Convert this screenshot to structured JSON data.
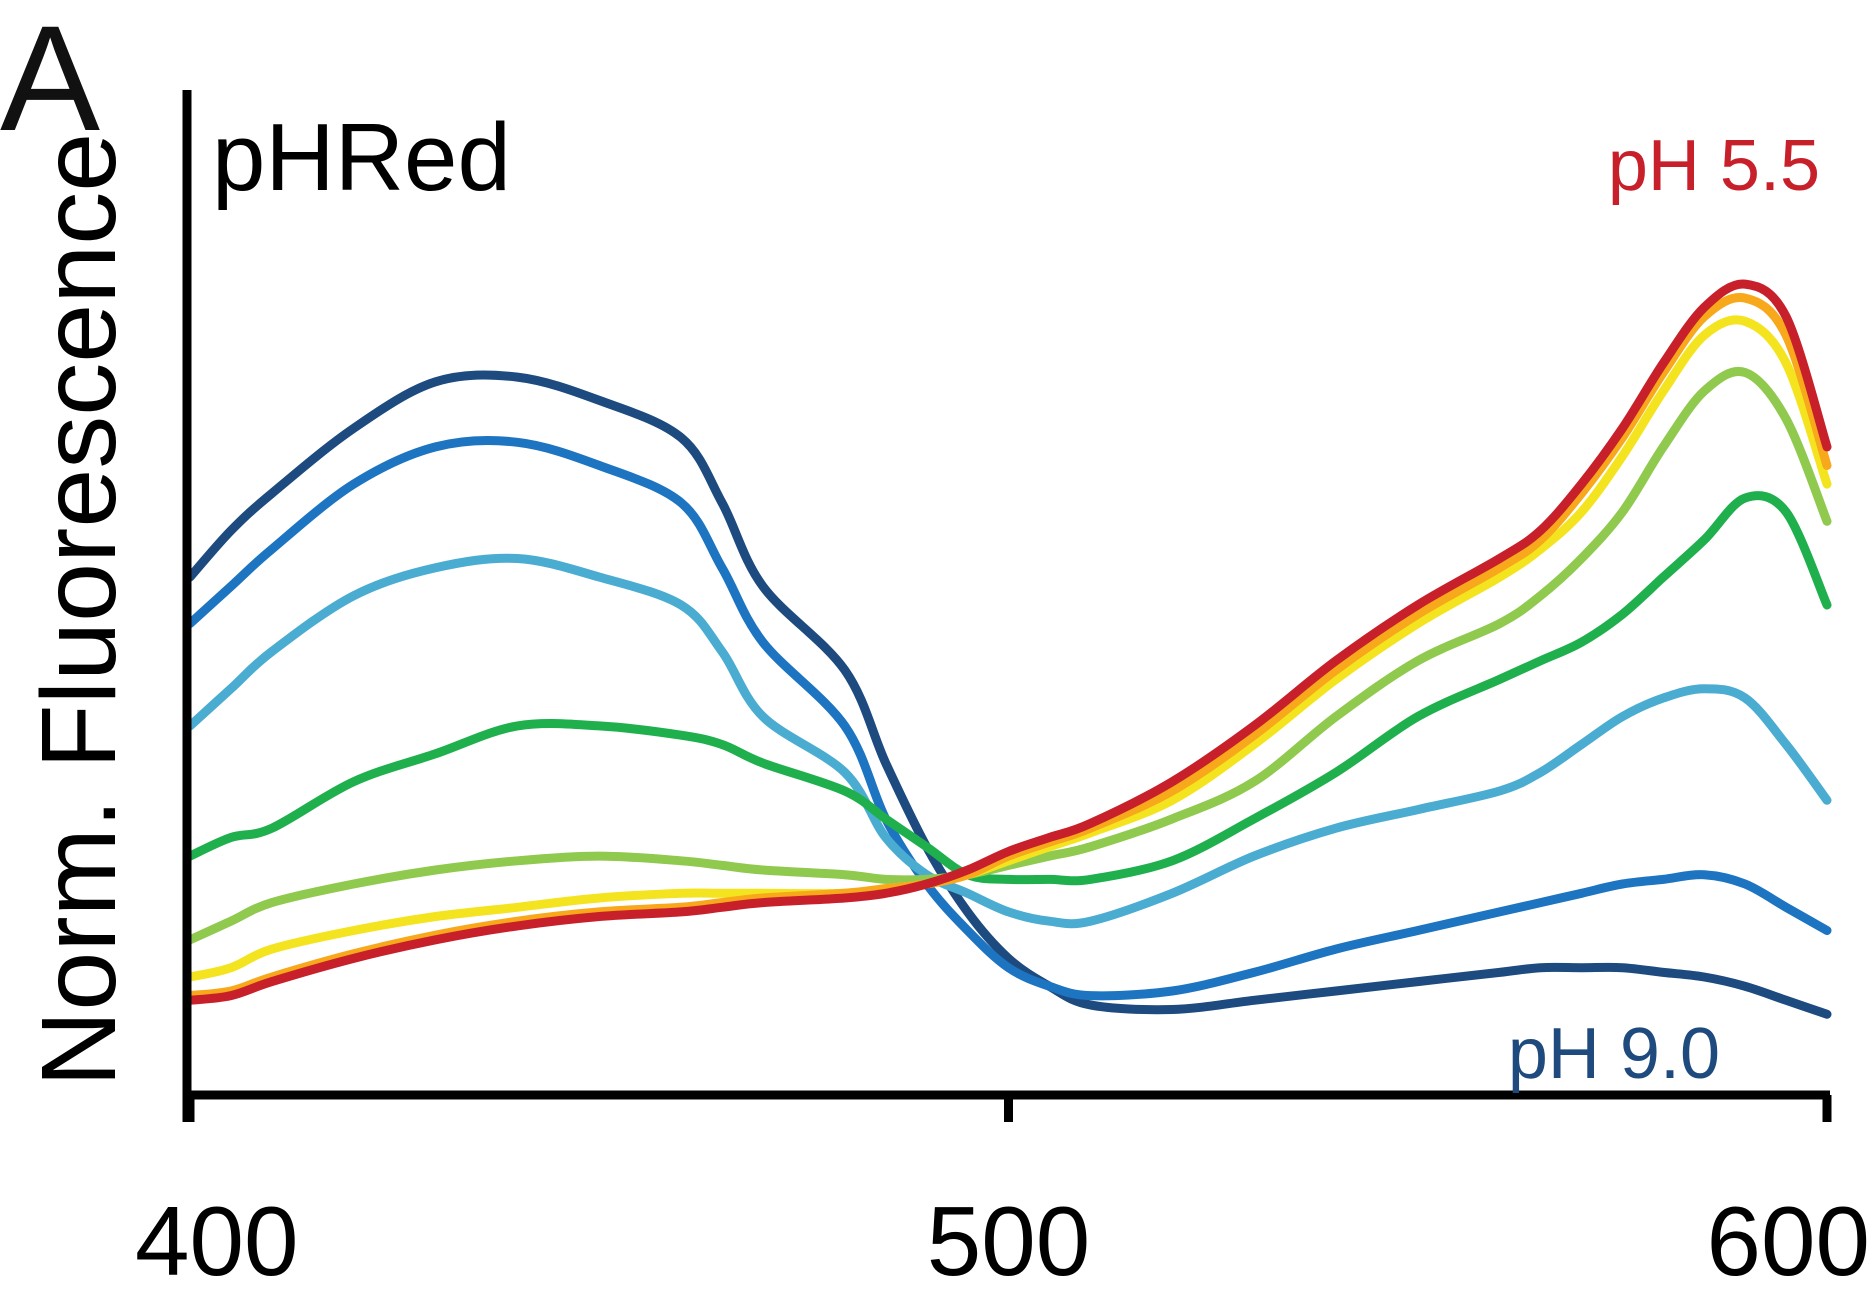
{
  "panel_label": "A",
  "chart_data": {
    "type": "line",
    "title": "pHRed",
    "xlabel": "",
    "ylabel": "Norm. Fluorescence",
    "xlim": [
      400,
      600
    ],
    "ylim": [
      0,
      1
    ],
    "x_ticks": [
      "400",
      "500",
      "600"
    ],
    "grid": false,
    "legend": "none",
    "annotations": [
      {
        "text": "pH 5.5",
        "color": "#c8202a"
      },
      {
        "text": "pH 9.0",
        "color": "#1e4a7e"
      }
    ],
    "x": [
      400,
      405,
      410,
      420,
      430,
      440,
      450,
      460,
      465,
      470,
      480,
      485,
      490,
      495,
      500,
      505,
      510,
      520,
      530,
      540,
      550,
      560,
      565,
      570,
      575,
      580,
      585,
      590,
      595,
      600
    ],
    "series": [
      {
        "color": "#1d4a7f",
        "values": [
          0.53,
          0.58,
          0.62,
          0.69,
          0.74,
          0.745,
          0.72,
          0.68,
          0.61,
          0.52,
          0.43,
          0.33,
          0.24,
          0.17,
          0.12,
          0.09,
          0.07,
          0.065,
          0.075,
          0.085,
          0.095,
          0.105,
          0.11,
          0.11,
          0.11,
          0.105,
          0.1,
          0.09,
          0.075,
          0.06
        ]
      },
      {
        "color": "#1d74c0",
        "values": [
          0.48,
          0.52,
          0.56,
          0.63,
          0.67,
          0.675,
          0.65,
          0.61,
          0.54,
          0.46,
          0.37,
          0.27,
          0.2,
          0.15,
          0.11,
          0.09,
          0.08,
          0.085,
          0.105,
          0.13,
          0.15,
          0.17,
          0.18,
          0.19,
          0.2,
          0.205,
          0.21,
          0.2,
          0.175,
          0.15
        ]
      },
      {
        "color": "#4aacd0",
        "values": [
          0.37,
          0.41,
          0.45,
          0.51,
          0.54,
          0.55,
          0.53,
          0.5,
          0.45,
          0.38,
          0.32,
          0.25,
          0.21,
          0.19,
          0.17,
          0.16,
          0.16,
          0.19,
          0.23,
          0.26,
          0.28,
          0.3,
          0.32,
          0.35,
          0.38,
          0.4,
          0.41,
          0.4,
          0.35,
          0.29
        ]
      },
      {
        "color": "#1fb04d",
        "values": [
          0.23,
          0.25,
          0.26,
          0.31,
          0.34,
          0.37,
          0.37,
          0.36,
          0.35,
          0.33,
          0.3,
          0.27,
          0.24,
          0.21,
          0.205,
          0.205,
          0.205,
          0.225,
          0.27,
          0.32,
          0.38,
          0.42,
          0.44,
          0.46,
          0.49,
          0.53,
          0.57,
          0.615,
          0.6,
          0.5
        ]
      },
      {
        "color": "#8fc94d",
        "values": [
          0.14,
          0.16,
          0.18,
          0.2,
          0.215,
          0.225,
          0.23,
          0.225,
          0.22,
          0.215,
          0.21,
          0.205,
          0.205,
          0.21,
          0.22,
          0.23,
          0.24,
          0.27,
          0.31,
          0.38,
          0.44,
          0.48,
          0.51,
          0.55,
          0.6,
          0.67,
          0.73,
          0.75,
          0.7,
          0.59
        ]
      },
      {
        "color": "#f4e41f",
        "values": [
          0.1,
          0.11,
          0.13,
          0.15,
          0.165,
          0.175,
          0.185,
          0.19,
          0.19,
          0.19,
          0.19,
          0.195,
          0.2,
          0.21,
          0.225,
          0.24,
          0.255,
          0.29,
          0.35,
          0.42,
          0.48,
          0.53,
          0.56,
          0.6,
          0.66,
          0.73,
          0.79,
          0.805,
          0.76,
          0.63
        ]
      },
      {
        "color": "#f7a81b",
        "values": [
          0.08,
          0.085,
          0.1,
          0.125,
          0.145,
          0.16,
          0.17,
          0.175,
          0.18,
          0.185,
          0.19,
          0.195,
          0.2,
          0.21,
          0.23,
          0.245,
          0.26,
          0.3,
          0.36,
          0.43,
          0.49,
          0.54,
          0.57,
          0.62,
          0.68,
          0.75,
          0.81,
          0.83,
          0.79,
          0.65
        ]
      },
      {
        "color": "#c8202a",
        "values": [
          0.075,
          0.08,
          0.095,
          0.12,
          0.14,
          0.155,
          0.165,
          0.17,
          0.175,
          0.18,
          0.185,
          0.19,
          0.2,
          0.215,
          0.235,
          0.25,
          0.265,
          0.31,
          0.37,
          0.44,
          0.5,
          0.55,
          0.58,
          0.63,
          0.69,
          0.76,
          0.82,
          0.845,
          0.81,
          0.67
        ]
      }
    ]
  }
}
